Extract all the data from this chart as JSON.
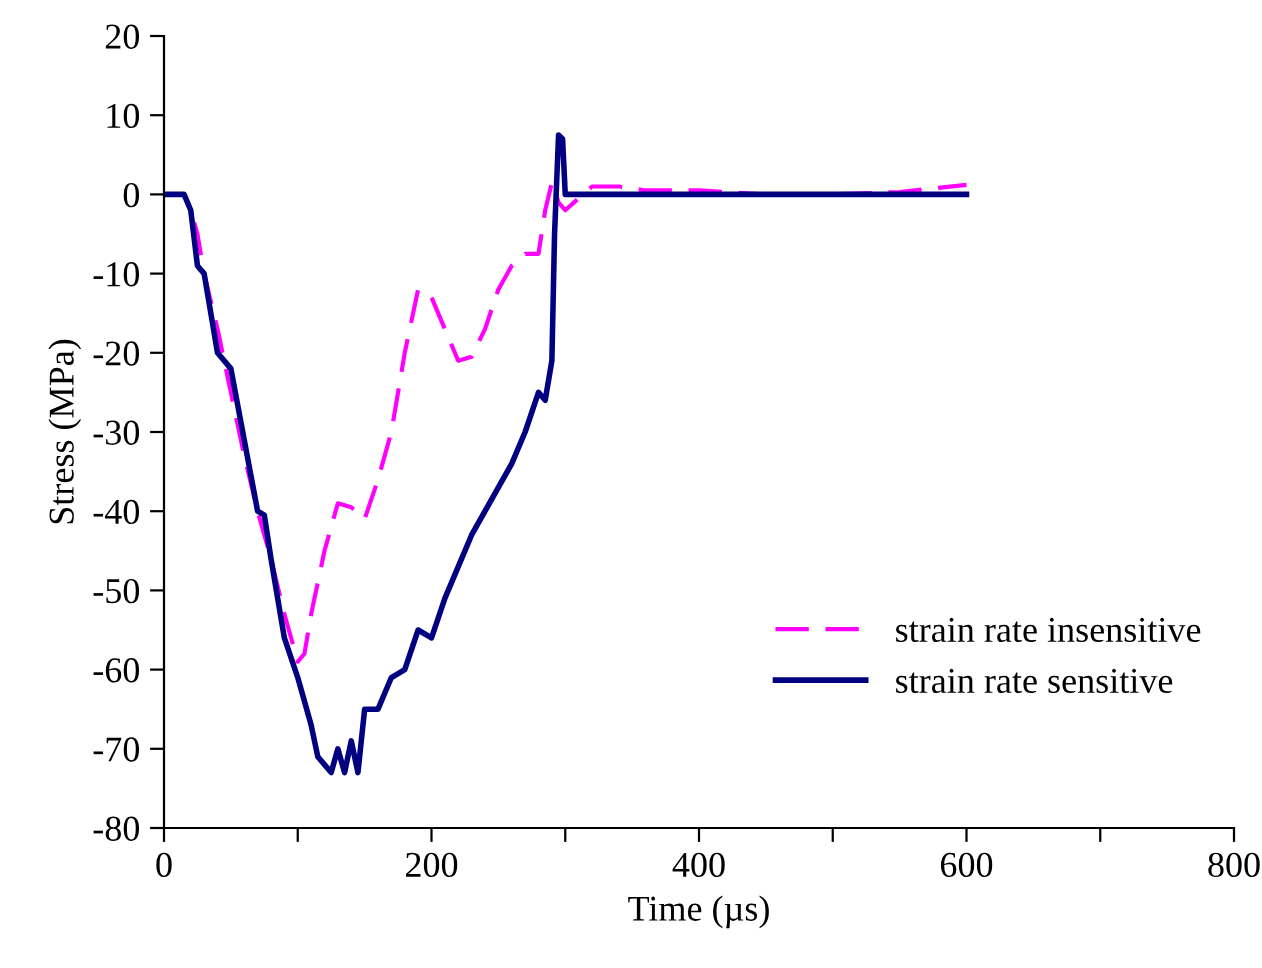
{
  "chart_data": {
    "type": "line",
    "xlabel": "Time (µs)",
    "ylabel": "Stress (MPa)",
    "xlim": [
      0,
      800
    ],
    "xticks": [
      0,
      {
        "value": 100,
        "label": null
      },
      200,
      {
        "value": 300,
        "label": null
      },
      400,
      {
        "value": 500,
        "label": null
      },
      600,
      {
        "value": 700,
        "label": null
      },
      800
    ],
    "ylim": [
      -80,
      20
    ],
    "yticks": [
      -80,
      -70,
      -60,
      -50,
      -40,
      -30,
      -20,
      -10,
      0,
      10,
      20
    ],
    "grid": false,
    "legend": "lower right",
    "marker": "none",
    "series": [
      {
        "name": "strain rate insensitive",
        "color": "#ff00ff",
        "line_style": "dashed",
        "x": [
          0,
          15,
          20,
          25,
          30,
          40,
          50,
          60,
          70,
          80,
          90,
          100,
          105,
          110,
          120,
          130,
          140,
          150,
          160,
          170,
          180,
          190,
          200,
          210,
          220,
          230,
          240,
          250,
          260,
          270,
          280,
          285,
          290,
          295,
          300,
          310,
          320,
          340,
          360,
          400,
          450,
          500,
          550,
          600
        ],
        "values": [
          0,
          0,
          -2,
          -5,
          -10,
          -17,
          -25,
          -33,
          -40,
          -46,
          -53,
          -59,
          -58,
          -53,
          -45,
          -39,
          -39.5,
          -41,
          -36,
          -30,
          -20,
          -12,
          -13,
          -17,
          -21,
          -20.5,
          -17,
          -12,
          -9,
          -7.5,
          -7.5,
          -2,
          1.5,
          -1,
          -2,
          -0.5,
          1,
          1,
          0.5,
          0.5,
          0,
          0,
          0.3,
          1.2
        ]
      },
      {
        "name": "strain rate sensitive",
        "color": "#000080",
        "line_style": "solid",
        "x": [
          0,
          15,
          20,
          25,
          30,
          40,
          50,
          60,
          70,
          75,
          80,
          90,
          100,
          110,
          115,
          120,
          125,
          130,
          135,
          140,
          145,
          150,
          160,
          170,
          180,
          190,
          200,
          210,
          220,
          230,
          240,
          250,
          260,
          270,
          280,
          285,
          290,
          292,
          295,
          298,
          300,
          600
        ],
        "values": [
          0,
          0,
          -2,
          -9,
          -10,
          -20,
          -22,
          -31,
          -40,
          -40.5,
          -46,
          -56,
          -61,
          -67,
          -71,
          -72,
          -73,
          -70,
          -73,
          -69,
          -73,
          -65,
          -65,
          -61,
          -60,
          -55,
          -56,
          -51,
          -47,
          -43,
          -40,
          -37,
          -34,
          -30,
          -25,
          -26,
          -21,
          -5,
          7.5,
          7,
          0,
          0
        ]
      }
    ]
  }
}
